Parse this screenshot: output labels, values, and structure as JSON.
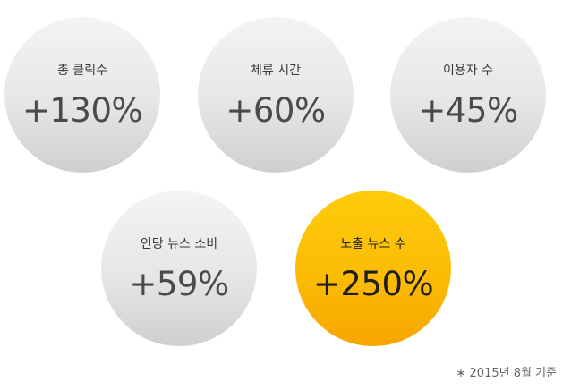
{
  "stats": [
    {
      "label": "총 클릭수",
      "value": "+130%"
    },
    {
      "label": "체류 시간",
      "value": "+60%"
    },
    {
      "label": "이용자 수",
      "value": "+45%"
    },
    {
      "label": "인당 뉴스 소비",
      "value": "+59%"
    },
    {
      "label": "노출 뉴스 수",
      "value": "+250%"
    }
  ],
  "footnote": "∗ 2015년 8월 기준",
  "colors": {
    "gray_circle": "#e6e6e6",
    "highlight_circle": "#fbbc05",
    "text_dark": "#4a4a4a"
  }
}
